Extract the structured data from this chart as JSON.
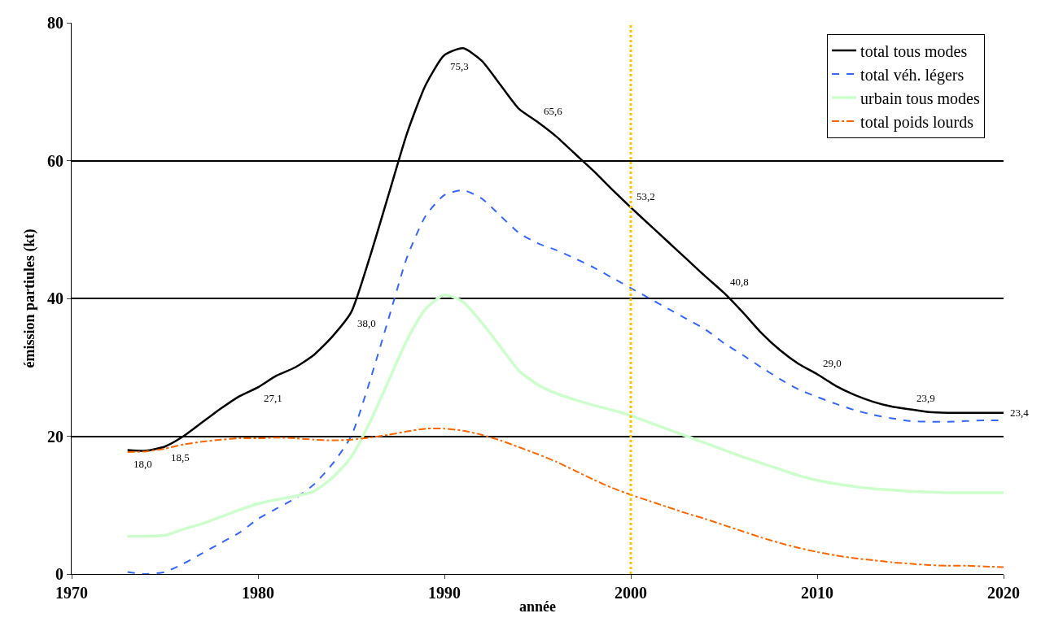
{
  "chart_data": {
    "type": "line",
    "xlabel": "année",
    "ylabel": "émission partiules (kt)",
    "xlim": [
      1970,
      2020
    ],
    "xticks": [
      1970,
      1980,
      1990,
      2000,
      2010,
      2020
    ],
    "ylim": [
      0,
      80
    ],
    "yticks": [
      0,
      20,
      40,
      60,
      80
    ],
    "grid": "y",
    "legend": "top right",
    "marker": "none",
    "ref_lines": [
      {
        "axis": "x",
        "value": 2000,
        "color": "#ffc000",
        "line_style": "dotted"
      }
    ],
    "series": [
      {
        "name": "total tous modes",
        "color": "#000000",
        "line_style": "solid",
        "x": [
          1973,
          1974,
          1975,
          1976,
          1977,
          1978,
          1979,
          1980,
          1981,
          1982,
          1983,
          1984,
          1985,
          1986,
          1987,
          1988,
          1989,
          1990,
          1991,
          1992,
          1993,
          1994,
          1995,
          1996,
          1997,
          1998,
          1999,
          2000,
          2001,
          2002,
          2003,
          2004,
          2005,
          2006,
          2007,
          2008,
          2009,
          2010,
          2011,
          2012,
          2013,
          2014,
          2015,
          2016,
          2017,
          2018,
          2019,
          2020
        ],
        "values": [
          18.0,
          17.9,
          18.5,
          20,
          22,
          24,
          25.8,
          27.1,
          28.8,
          30,
          31.8,
          34.5,
          38.0,
          46,
          55,
          64,
          71,
          75.3,
          76.3,
          74.5,
          71,
          67.5,
          65.6,
          63.5,
          61,
          58.5,
          55.8,
          53.2,
          50.7,
          48.2,
          45.7,
          43.2,
          40.8,
          38,
          35,
          32.5,
          30.5,
          29.0,
          27.3,
          26,
          25,
          24.3,
          23.9,
          23.5,
          23.4,
          23.4,
          23.4,
          23.4
        ],
        "value_labels": [
          "18,0",
          null,
          "18,5",
          null,
          null,
          null,
          null,
          "27,1",
          null,
          null,
          null,
          null,
          "38,0",
          null,
          null,
          null,
          null,
          "75,3",
          null,
          null,
          null,
          null,
          "65,6",
          null,
          null,
          null,
          null,
          "53,2",
          null,
          null,
          null,
          null,
          "40,8",
          null,
          null,
          null,
          null,
          "29,0",
          null,
          null,
          null,
          null,
          "23,9",
          null,
          null,
          null,
          null,
          "23,4"
        ]
      },
      {
        "name": "total véh. légers",
        "color": "#3366ff",
        "line_style": "dashed",
        "x": [
          1973,
          1974,
          1975,
          1976,
          1977,
          1978,
          1979,
          1980,
          1981,
          1982,
          1983,
          1984,
          1985,
          1986,
          1987,
          1988,
          1989,
          1990,
          1991,
          1992,
          1993,
          1994,
          1995,
          1996,
          1997,
          1998,
          1999,
          2000,
          2001,
          2002,
          2003,
          2004,
          2005,
          2006,
          2007,
          2008,
          2009,
          2010,
          2011,
          2012,
          2013,
          2014,
          2015,
          2016,
          2017,
          2018,
          2019,
          2020
        ],
        "values": [
          0.3,
          0,
          0.3,
          1.5,
          3,
          4.5,
          6,
          8,
          9.5,
          11,
          13,
          16,
          20,
          28,
          37,
          46,
          52,
          55,
          55.7,
          54.5,
          52,
          49.5,
          48,
          47,
          45.8,
          44.5,
          43,
          41.5,
          40,
          38.5,
          37,
          35.5,
          33.5,
          31.8,
          30,
          28.3,
          26.8,
          25.7,
          24.7,
          23.8,
          23.1,
          22.6,
          22.2,
          22.1,
          22.1,
          22.2,
          22.3,
          22.3
        ]
      },
      {
        "name": "urbain tous modes",
        "color": "#ccffcc",
        "line_style": "solid",
        "x": [
          1973,
          1974,
          1975,
          1976,
          1977,
          1978,
          1979,
          1980,
          1981,
          1982,
          1983,
          1984,
          1985,
          1986,
          1987,
          1988,
          1989,
          1990,
          1991,
          1992,
          1993,
          1994,
          1995,
          1996,
          1997,
          1998,
          1999,
          2000,
          2001,
          2002,
          2003,
          2004,
          2005,
          2006,
          2007,
          2008,
          2009,
          2010,
          2011,
          2012,
          2013,
          2014,
          2015,
          2016,
          2017,
          2018,
          2019,
          2020
        ],
        "values": [
          5.5,
          5.5,
          5.6,
          6.5,
          7.3,
          8.3,
          9.3,
          10.2,
          10.8,
          11.3,
          12,
          14,
          17,
          22,
          28,
          34,
          38.5,
          40.5,
          39.5,
          36.5,
          33,
          29.5,
          27.5,
          26.2,
          25.3,
          24.5,
          23.8,
          23,
          22,
          21,
          20,
          19,
          18,
          17,
          16.1,
          15.2,
          14.3,
          13.6,
          13.1,
          12.7,
          12.4,
          12.2,
          12,
          11.9,
          11.8,
          11.8,
          11.8,
          11.8
        ]
      },
      {
        "name": "total poids lourds",
        "color": "#ff6600",
        "line_style": "dashdot",
        "x": [
          1973,
          1974,
          1975,
          1976,
          1977,
          1978,
          1979,
          1980,
          1981,
          1982,
          1983,
          1984,
          1985,
          1986,
          1987,
          1988,
          1989,
          1990,
          1991,
          1992,
          1993,
          1994,
          1995,
          1996,
          1997,
          1998,
          1999,
          2000,
          2001,
          2002,
          2003,
          2004,
          2005,
          2006,
          2007,
          2008,
          2009,
          2010,
          2011,
          2012,
          2013,
          2014,
          2015,
          2016,
          2017,
          2018,
          2019,
          2020
        ],
        "values": [
          17.7,
          17.8,
          18.2,
          18.8,
          19.2,
          19.5,
          19.7,
          19.7,
          19.8,
          19.7,
          19.5,
          19.4,
          19.5,
          19.8,
          20.2,
          20.7,
          21.1,
          21.1,
          20.8,
          20.2,
          19.4,
          18.4,
          17.4,
          16.3,
          15,
          13.7,
          12.5,
          11.5,
          10.6,
          9.7,
          8.8,
          8,
          7.1,
          6.2,
          5.3,
          4.5,
          3.8,
          3.2,
          2.7,
          2.3,
          2,
          1.7,
          1.5,
          1.3,
          1.2,
          1.2,
          1.1,
          1.0
        ]
      }
    ]
  }
}
